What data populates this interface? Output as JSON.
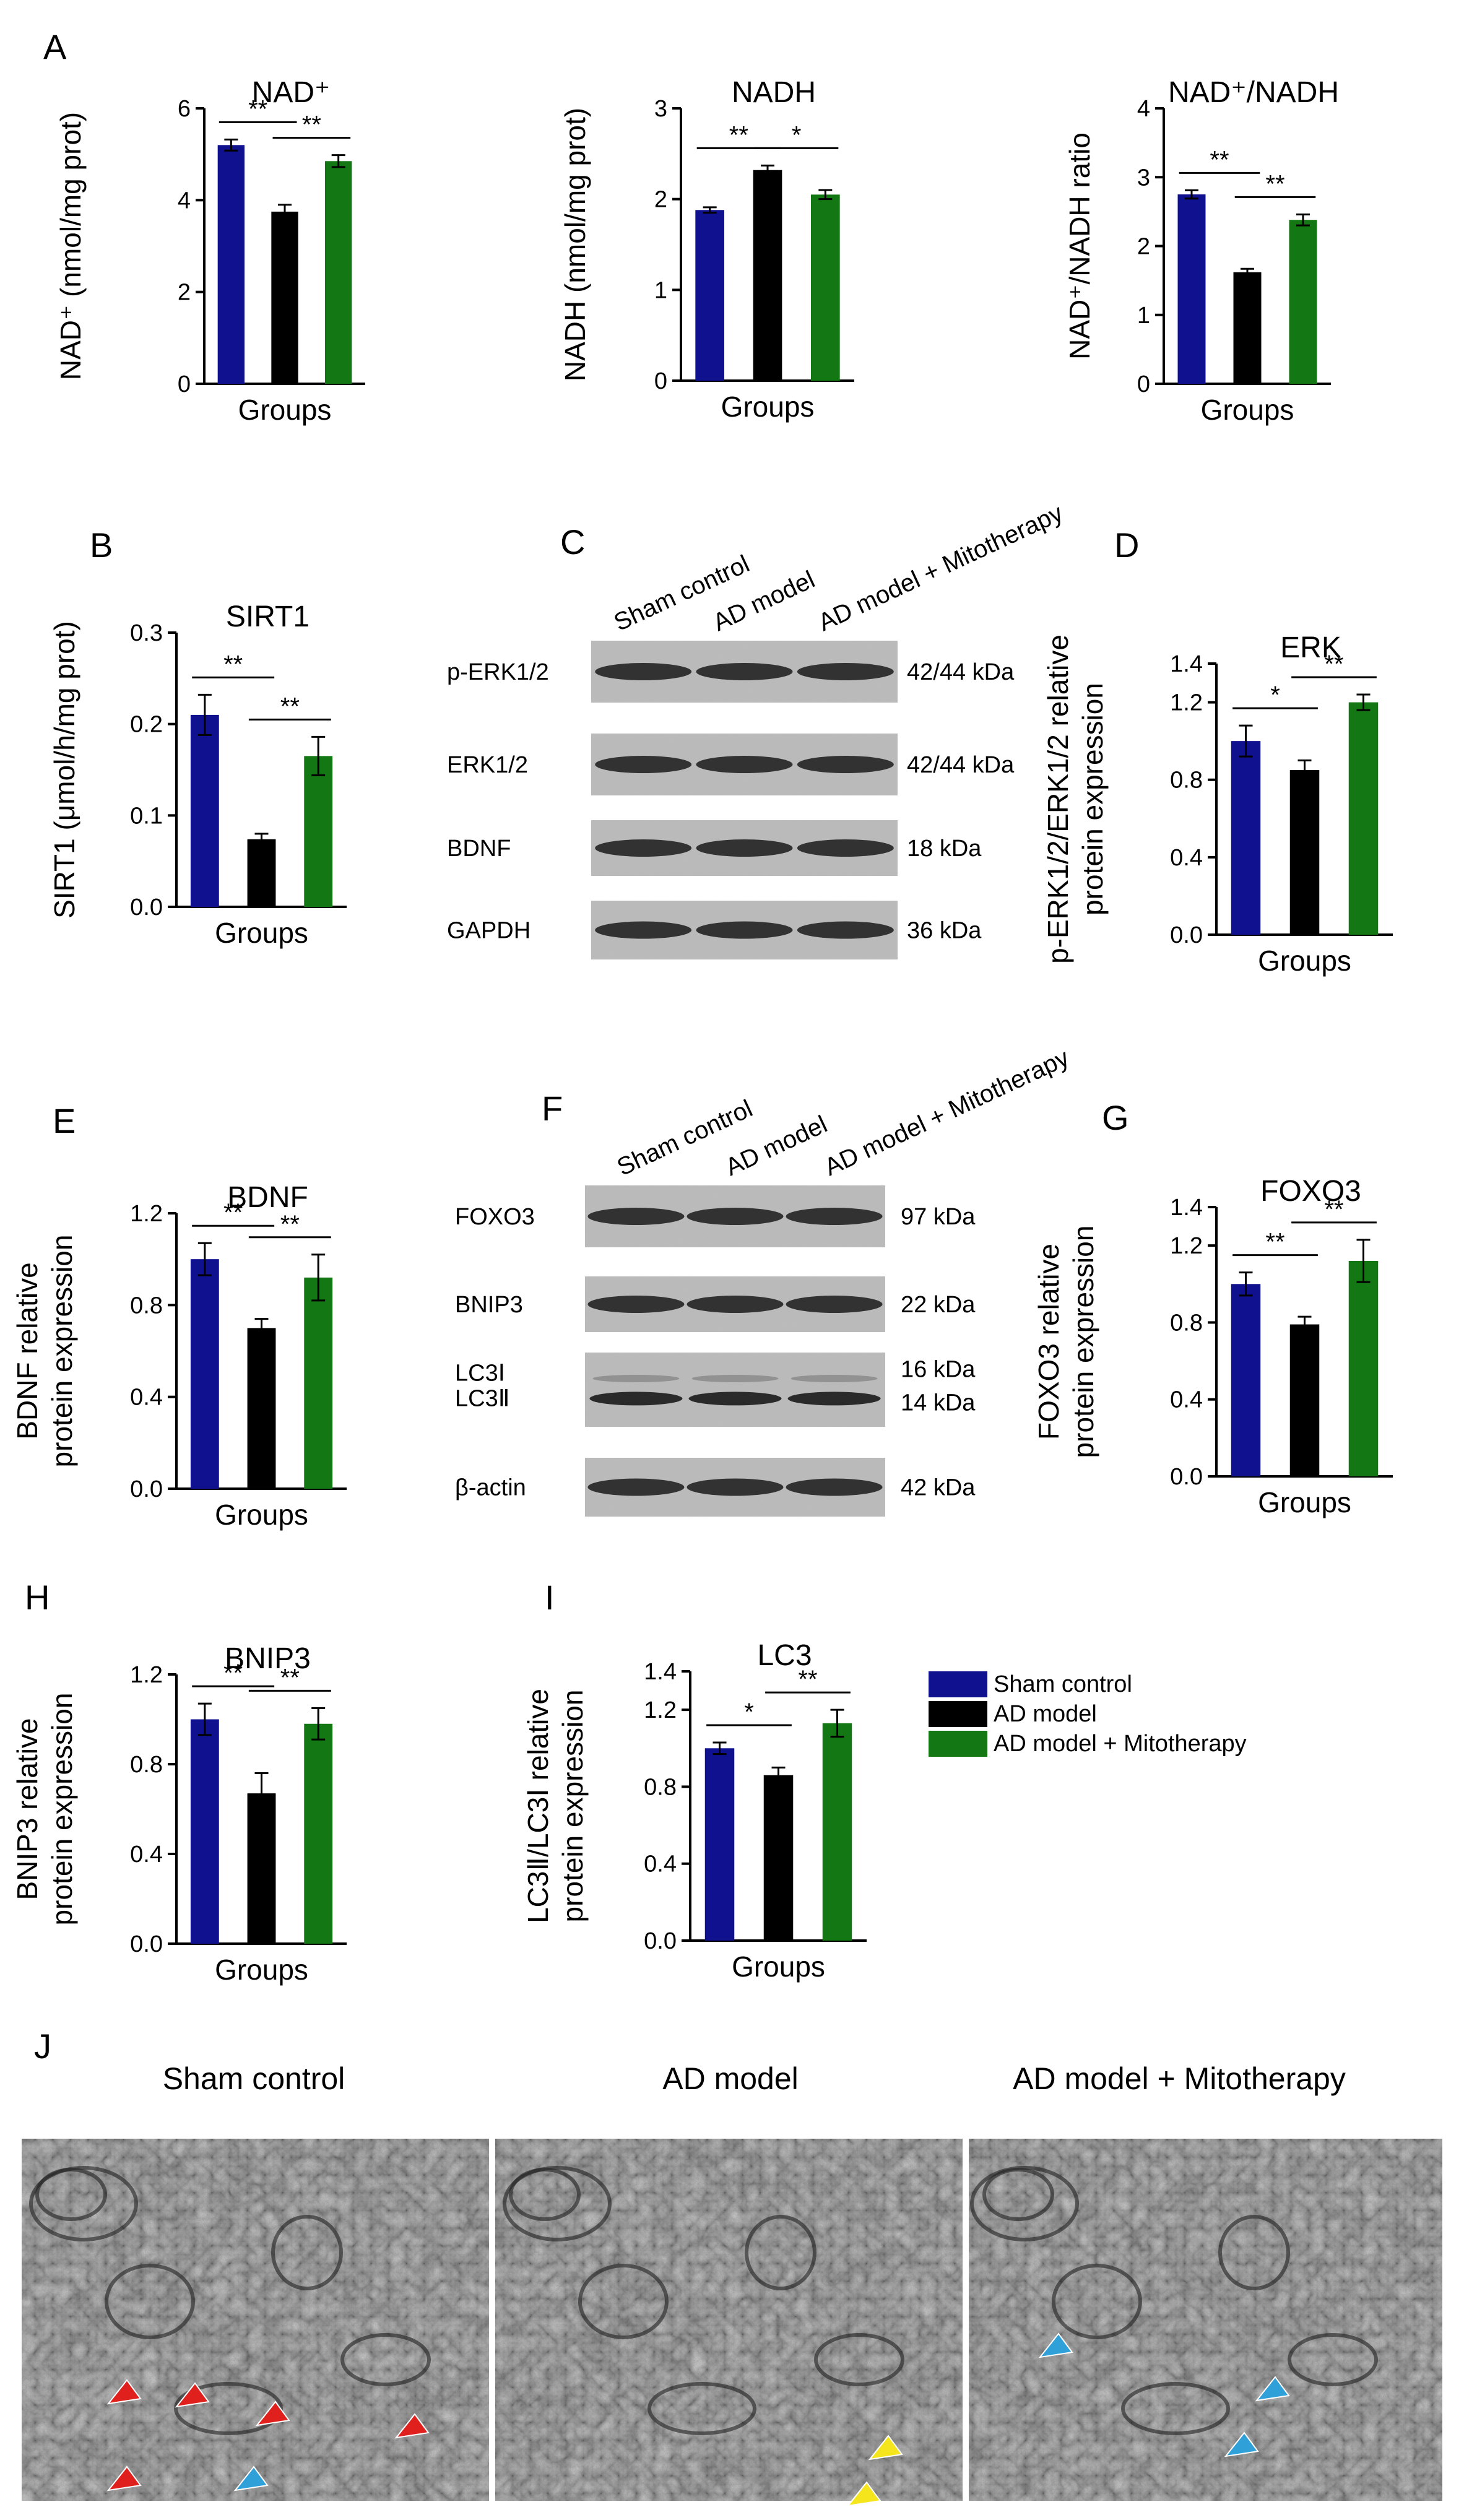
{
  "figure": {
    "colors": {
      "sham": "#10118f",
      "ad": "#000000",
      "mito": "#137813"
    },
    "legend": [
      "Sham control",
      "AD model",
      "AD model + Mitotherapy"
    ],
    "xlabel": "Groups"
  },
  "chart_data": [
    {
      "id": "A1",
      "letter": "A",
      "type": "bar",
      "title": "NAD⁺",
      "ylabel": "NAD⁺ (nmol/mg prot)",
      "xlabel": "Groups",
      "categories": [
        "Sham control",
        "AD model",
        "AD model + Mitotherapy"
      ],
      "values": [
        5.2,
        3.75,
        4.85
      ],
      "errors": [
        0.12,
        0.15,
        0.13
      ],
      "ylim": [
        0,
        6
      ],
      "yticks": [
        "0",
        "2",
        "4",
        "6"
      ],
      "sig": [
        {
          "from": 0,
          "to": 1,
          "label": "**"
        },
        {
          "from": 1,
          "to": 2,
          "label": "**"
        }
      ]
    },
    {
      "id": "A2",
      "letter": "",
      "type": "bar",
      "title": "NADH",
      "ylabel": "NADH (nmol/mg prot)",
      "xlabel": "Groups",
      "categories": [
        "Sham control",
        "AD model",
        "AD model + Mitotherapy"
      ],
      "values": [
        1.88,
        2.32,
        2.05
      ],
      "errors": [
        0.03,
        0.05,
        0.05
      ],
      "ylim": [
        0,
        3
      ],
      "yticks": [
        "0",
        "1",
        "2",
        "3"
      ],
      "sig": [
        {
          "from": 0,
          "to": 1,
          "label": "**"
        },
        {
          "from": 1,
          "to": 2,
          "label": "*"
        }
      ]
    },
    {
      "id": "A3",
      "letter": "",
      "type": "bar",
      "title": "NAD⁺/NADH",
      "ylabel": "NAD⁺/NADH ratio",
      "xlabel": "Groups",
      "categories": [
        "Sham control",
        "AD model",
        "AD model + Mitotherapy"
      ],
      "values": [
        2.75,
        1.62,
        2.38
      ],
      "errors": [
        0.06,
        0.05,
        0.08
      ],
      "ylim": [
        0,
        4
      ],
      "yticks": [
        "0",
        "1",
        "2",
        "3",
        "4"
      ],
      "sig": [
        {
          "from": 0,
          "to": 1,
          "label": "**"
        },
        {
          "from": 1,
          "to": 2,
          "label": "**"
        }
      ]
    },
    {
      "id": "B",
      "letter": "B",
      "type": "bar",
      "title": "SIRT1",
      "ylabel": "SIRT1 (μmol/h/mg prot)",
      "xlabel": "Groups",
      "categories": [
        "Sham control",
        "AD model",
        "AD model + Mitotherapy"
      ],
      "values": [
        0.21,
        0.074,
        0.165
      ],
      "errors": [
        0.022,
        0.006,
        0.021
      ],
      "ylim": [
        0,
        0.3
      ],
      "yticks": [
        "0.0",
        "0.1",
        "0.2",
        "0.3"
      ],
      "sig": [
        {
          "from": 0,
          "to": 1,
          "label": "**"
        },
        {
          "from": 1,
          "to": 2,
          "label": "**"
        }
      ]
    },
    {
      "id": "D",
      "letter": "D",
      "type": "bar",
      "title": "ERK",
      "ylabel": "p-ERK1/2/ERK1/2 relative protein expression",
      "xlabel": "Groups",
      "categories": [
        "Sham control",
        "AD model",
        "AD model + Mitotherapy"
      ],
      "values": [
        1.0,
        0.85,
        1.2
      ],
      "errors": [
        0.08,
        0.05,
        0.04
      ],
      "ylim": [
        0,
        1.4
      ],
      "yticks": [
        "0.0",
        "0.4",
        "0.8",
        "1.2",
        "1.4"
      ],
      "sig": [
        {
          "from": 0,
          "to": 1,
          "label": "*"
        },
        {
          "from": 1,
          "to": 2,
          "label": "**"
        }
      ]
    },
    {
      "id": "E",
      "letter": "E",
      "type": "bar",
      "title": "BDNF",
      "ylabel": "BDNF relative protein expression",
      "xlabel": "Groups",
      "categories": [
        "Sham control",
        "AD model",
        "AD model + Mitotherapy"
      ],
      "values": [
        1.0,
        0.7,
        0.92
      ],
      "errors": [
        0.07,
        0.04,
        0.1
      ],
      "ylim": [
        0,
        1.2
      ],
      "yticks": [
        "0.0",
        "0.4",
        "0.8",
        "1.2"
      ],
      "sig": [
        {
          "from": 0,
          "to": 1,
          "label": "**"
        },
        {
          "from": 1,
          "to": 2,
          "label": "**"
        }
      ]
    },
    {
      "id": "G",
      "letter": "G",
      "type": "bar",
      "title": "FOXO3",
      "ylabel": "FOXO3 relative protein expression",
      "xlabel": "Groups",
      "categories": [
        "Sham control",
        "AD model",
        "AD model + Mitotherapy"
      ],
      "values": [
        1.0,
        0.79,
        1.12
      ],
      "errors": [
        0.06,
        0.04,
        0.11
      ],
      "ylim": [
        0,
        1.4
      ],
      "yticks": [
        "0.0",
        "0.4",
        "0.8",
        "1.2",
        "1.4"
      ],
      "sig": [
        {
          "from": 0,
          "to": 1,
          "label": "**"
        },
        {
          "from": 1,
          "to": 2,
          "label": "**"
        }
      ]
    },
    {
      "id": "H",
      "letter": "H",
      "type": "bar",
      "title": "BNIP3",
      "ylabel": "BNIP3 relative protein expression",
      "xlabel": "Groups",
      "categories": [
        "Sham control",
        "AD model",
        "AD model + Mitotherapy"
      ],
      "values": [
        1.0,
        0.67,
        0.98
      ],
      "errors": [
        0.07,
        0.09,
        0.07
      ],
      "ylim": [
        0,
        1.2
      ],
      "yticks": [
        "0.0",
        "0.4",
        "0.8",
        "1.2"
      ],
      "sig": [
        {
          "from": 0,
          "to": 1,
          "label": "**"
        },
        {
          "from": 1,
          "to": 2,
          "label": "**"
        }
      ]
    },
    {
      "id": "I",
      "letter": "I",
      "type": "bar",
      "title": "LC3",
      "ylabel": "LC3Ⅱ/LC3Ⅰ relative protein expression",
      "xlabel": "Groups",
      "categories": [
        "Sham control",
        "AD model",
        "AD model + Mitotherapy"
      ],
      "values": [
        1.0,
        0.86,
        1.13
      ],
      "errors": [
        0.03,
        0.04,
        0.07
      ],
      "ylim": [
        0,
        1.4
      ],
      "yticks": [
        "0.0",
        "0.4",
        "0.8",
        "1.2",
        "1.4"
      ],
      "sig": [
        {
          "from": 0,
          "to": 1,
          "label": "*"
        },
        {
          "from": 1,
          "to": 2,
          "label": "**"
        }
      ]
    }
  ],
  "blots": [
    {
      "id": "C",
      "letter": "C",
      "columns": [
        "Sham control",
        "AD model",
        "AD model + Mitotherapy"
      ],
      "rows": [
        {
          "label": "p-ERK1/2",
          "kda": [
            "42/44 kDa"
          ]
        },
        {
          "label": "ERK1/2",
          "kda": [
            "42/44 kDa"
          ]
        },
        {
          "label": "BDNF",
          "kda": [
            "18 kDa"
          ]
        },
        {
          "label": "GAPDH",
          "kda": [
            "36 kDa"
          ]
        }
      ]
    },
    {
      "id": "F",
      "letter": "F",
      "columns": [
        "Sham control",
        "AD model",
        "AD model + Mitotherapy"
      ],
      "rows": [
        {
          "label": "FOXO3",
          "kda": [
            "97 kDa"
          ]
        },
        {
          "label": "BNIP3",
          "kda": [
            "22 kDa"
          ]
        },
        {
          "label": "LC3Ⅰ\nLC3Ⅱ",
          "kda": [
            "16 kDa",
            "14 kDa"
          ]
        },
        {
          "label": "β-actin",
          "kda": [
            "42 kDa"
          ]
        }
      ]
    }
  ],
  "em": {
    "letter": "J",
    "panels": [
      {
        "title": "Sham control",
        "arrows": {
          "red": 6,
          "blue": 1,
          "yellow": 0
        }
      },
      {
        "title": "AD model",
        "arrows": {
          "red": 0,
          "blue": 0,
          "yellow": 2
        }
      },
      {
        "title": "AD model + Mitotherapy",
        "arrows": {
          "red": 0,
          "blue": 0,
          "yellow": 0,
          "cyan": 3
        }
      }
    ]
  }
}
